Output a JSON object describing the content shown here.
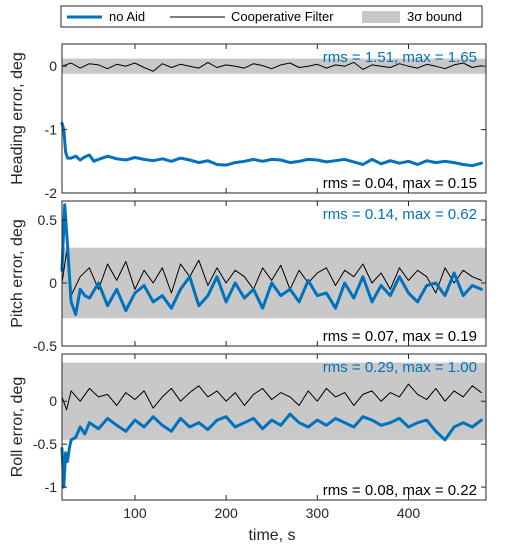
{
  "colors": {
    "no_aid": "#0072BD",
    "coop": "#000000",
    "bound": "#c8c8c8",
    "text": "#262626",
    "axis": "#262626"
  },
  "legend": {
    "entries": [
      {
        "label": "no Aid",
        "style": "thick-line",
        "color": "#0072BD"
      },
      {
        "label": "Cooperative Filter",
        "style": "thin-line",
        "color": "#000000"
      },
      {
        "label": "3σ bound",
        "style": "patch",
        "color": "#c8c8c8"
      }
    ]
  },
  "xlabel": "time, s",
  "chart_data": [
    {
      "type": "line",
      "ylabel": "Heading error, deg",
      "xlim": [
        20,
        485
      ],
      "ylim": [
        -2,
        0.35
      ],
      "xticks": [
        100,
        200,
        300,
        400
      ],
      "xticklabels": [
        "100",
        "200",
        "300",
        "400"
      ],
      "yticks": [
        -2,
        -1,
        0
      ],
      "yticklabels": [
        "-2",
        "-1",
        "0"
      ],
      "bound": 0.12,
      "annotations": [
        {
          "text": "rms = 1.51, max = 1.65",
          "series": "no Aid",
          "position": "top-right"
        },
        {
          "text": "rms = 0.04, max = 0.15",
          "series": "Cooperative Filter",
          "position": "bottom-right"
        }
      ],
      "series": [
        {
          "name": "no Aid",
          "x": [
            20,
            22,
            24,
            26,
            30,
            35,
            40,
            45,
            50,
            55,
            60,
            70,
            80,
            90,
            100,
            110,
            120,
            130,
            140,
            150,
            160,
            170,
            180,
            190,
            200,
            210,
            220,
            230,
            240,
            250,
            260,
            270,
            280,
            290,
            300,
            310,
            320,
            330,
            340,
            350,
            360,
            370,
            380,
            390,
            400,
            410,
            420,
            430,
            440,
            450,
            460,
            470,
            480
          ],
          "y": [
            -0.9,
            -1.0,
            -1.35,
            -1.45,
            -1.45,
            -1.42,
            -1.48,
            -1.43,
            -1.4,
            -1.5,
            -1.47,
            -1.42,
            -1.46,
            -1.48,
            -1.44,
            -1.47,
            -1.49,
            -1.46,
            -1.5,
            -1.45,
            -1.48,
            -1.52,
            -1.49,
            -1.55,
            -1.56,
            -1.52,
            -1.5,
            -1.47,
            -1.5,
            -1.47,
            -1.48,
            -1.52,
            -1.5,
            -1.47,
            -1.48,
            -1.51,
            -1.49,
            -1.47,
            -1.51,
            -1.55,
            -1.47,
            -1.54,
            -1.49,
            -1.53,
            -1.5,
            -1.55,
            -1.49,
            -1.52,
            -1.5,
            -1.52,
            -1.55,
            -1.57,
            -1.53
          ]
        },
        {
          "name": "Cooperative Filter",
          "x": [
            20,
            30,
            40,
            50,
            60,
            70,
            80,
            90,
            100,
            110,
            120,
            130,
            140,
            150,
            160,
            170,
            180,
            190,
            200,
            210,
            220,
            230,
            240,
            250,
            260,
            270,
            280,
            290,
            300,
            310,
            320,
            330,
            340,
            350,
            360,
            370,
            380,
            390,
            400,
            410,
            420,
            430,
            440,
            450,
            460,
            470,
            480
          ],
          "y": [
            0.0,
            0.05,
            -0.03,
            0.04,
            0.02,
            -0.04,
            0.03,
            0.0,
            0.05,
            -0.02,
            -0.08,
            0.04,
            -0.02,
            0.03,
            0.0,
            -0.03,
            0.06,
            -0.02,
            0.02,
            0.0,
            -0.03,
            0.04,
            0.01,
            -0.04,
            0.02,
            0.05,
            -0.02,
            0.0,
            0.03,
            -0.03,
            0.02,
            0.0,
            0.06,
            -0.05,
            0.02,
            0.0,
            -0.02,
            0.04,
            0.0,
            -0.03,
            0.03,
            0.0,
            -0.04,
            0.02,
            0.05,
            -0.02,
            0.01
          ]
        }
      ]
    },
    {
      "type": "line",
      "ylabel": "Pitch error, deg",
      "xlim": [
        20,
        485
      ],
      "ylim": [
        -0.5,
        0.65
      ],
      "xticks": [
        100,
        200,
        300,
        400
      ],
      "xticklabels": [
        "100",
        "200",
        "300",
        "400"
      ],
      "yticks": [
        -0.5,
        0,
        0.5
      ],
      "yticklabels": [
        "-0.5",
        "0",
        "0.5"
      ],
      "bound": 0.28,
      "annotations": [
        {
          "text": "rms = 0.14, max = 0.62",
          "series": "no Aid",
          "position": "top-right"
        },
        {
          "text": "rms = 0.07, max = 0.19",
          "series": "Cooperative Filter",
          "position": "bottom-right"
        }
      ],
      "series": [
        {
          "name": "no Aid",
          "x": [
            20,
            23,
            26,
            30,
            35,
            40,
            45,
            50,
            60,
            70,
            80,
            90,
            100,
            110,
            120,
            130,
            140,
            150,
            160,
            170,
            180,
            190,
            200,
            210,
            220,
            230,
            240,
            250,
            260,
            270,
            280,
            290,
            300,
            310,
            320,
            330,
            340,
            350,
            360,
            370,
            380,
            390,
            400,
            410,
            420,
            430,
            440,
            450,
            460,
            470,
            480
          ],
          "y": [
            0.1,
            0.62,
            0.3,
            -0.15,
            -0.25,
            -0.05,
            -0.1,
            -0.12,
            0.0,
            -0.18,
            -0.05,
            -0.22,
            -0.08,
            -0.02,
            -0.15,
            -0.1,
            -0.2,
            -0.05,
            0.05,
            -0.18,
            -0.1,
            0.05,
            -0.15,
            0.0,
            -0.12,
            -0.05,
            -0.2,
            0.0,
            -0.1,
            -0.05,
            -0.15,
            0.02,
            -0.1,
            -0.08,
            -0.2,
            0.0,
            -0.12,
            0.05,
            -0.15,
            -0.02,
            -0.1,
            0.05,
            -0.08,
            -0.15,
            -0.02,
            0.0,
            -0.1,
            0.08,
            -0.1,
            -0.02,
            -0.05
          ]
        },
        {
          "name": "Cooperative Filter",
          "x": [
            20,
            25,
            30,
            40,
            50,
            60,
            70,
            80,
            90,
            100,
            110,
            120,
            130,
            140,
            150,
            160,
            170,
            180,
            190,
            200,
            210,
            220,
            230,
            240,
            250,
            260,
            270,
            280,
            290,
            300,
            310,
            320,
            330,
            340,
            350,
            360,
            370,
            380,
            390,
            400,
            410,
            420,
            430,
            440,
            450,
            460,
            470,
            480
          ],
          "y": [
            0.0,
            0.25,
            -0.1,
            0.05,
            0.12,
            -0.05,
            0.15,
            0.02,
            0.17,
            -0.05,
            0.1,
            0.0,
            0.12,
            -0.08,
            0.15,
            0.05,
            0.18,
            -0.02,
            0.12,
            0.0,
            0.1,
            0.05,
            -0.05,
            0.12,
            0.02,
            0.14,
            -0.05,
            0.1,
            0.0,
            0.08,
            0.12,
            -0.02,
            0.1,
            0.05,
            0.15,
            0.0,
            0.08,
            -0.05,
            0.12,
            0.02,
            0.1,
            0.05,
            -0.08,
            0.12,
            0.0,
            0.1,
            0.05,
            0.02
          ]
        }
      ]
    },
    {
      "type": "line",
      "ylabel": "Roll error, deg",
      "xlim": [
        20,
        485
      ],
      "ylim": [
        -1.15,
        0.55
      ],
      "xticks": [
        100,
        200,
        300,
        400
      ],
      "xticklabels": [
        "100",
        "200",
        "300",
        "400"
      ],
      "yticks": [
        -1,
        -0.5,
        0
      ],
      "yticklabels": [
        "-1",
        "-0.5",
        "0"
      ],
      "bound": 0.45,
      "annotations": [
        {
          "text": "rms = 0.29, max = 1.00",
          "series": "no Aid",
          "position": "top-right"
        },
        {
          "text": "rms = 0.08, max = 0.22",
          "series": "Cooperative Filter",
          "position": "bottom-right"
        }
      ],
      "series": [
        {
          "name": "no Aid",
          "x": [
            20,
            22,
            24,
            26,
            28,
            30,
            35,
            40,
            45,
            50,
            60,
            70,
            80,
            90,
            100,
            110,
            120,
            130,
            140,
            150,
            160,
            170,
            180,
            190,
            200,
            210,
            220,
            230,
            240,
            250,
            260,
            270,
            280,
            290,
            300,
            310,
            320,
            330,
            340,
            350,
            360,
            370,
            380,
            390,
            400,
            410,
            420,
            430,
            440,
            450,
            460,
            470,
            480
          ],
          "y": [
            -0.55,
            -1.0,
            -0.6,
            -0.7,
            -0.55,
            -0.45,
            -0.42,
            -0.3,
            -0.38,
            -0.25,
            -0.32,
            -0.2,
            -0.28,
            -0.35,
            -0.22,
            -0.3,
            -0.18,
            -0.28,
            -0.35,
            -0.2,
            -0.3,
            -0.25,
            -0.33,
            -0.22,
            -0.18,
            -0.3,
            -0.25,
            -0.2,
            -0.32,
            -0.22,
            -0.28,
            -0.15,
            -0.25,
            -0.3,
            -0.22,
            -0.28,
            -0.2,
            -0.25,
            -0.3,
            -0.18,
            -0.22,
            -0.28,
            -0.25,
            -0.2,
            -0.3,
            -0.25,
            -0.22,
            -0.35,
            -0.45,
            -0.3,
            -0.25,
            -0.3,
            -0.22
          ]
        },
        {
          "name": "Cooperative Filter",
          "x": [
            20,
            25,
            30,
            40,
            50,
            60,
            70,
            80,
            90,
            100,
            110,
            120,
            130,
            140,
            150,
            160,
            170,
            180,
            190,
            200,
            210,
            220,
            230,
            240,
            250,
            260,
            270,
            280,
            290,
            300,
            310,
            320,
            330,
            340,
            350,
            360,
            370,
            380,
            390,
            400,
            410,
            420,
            430,
            440,
            450,
            460,
            470,
            480
          ],
          "y": [
            0.05,
            -0.1,
            0.12,
            0.0,
            0.15,
            0.05,
            0.08,
            -0.05,
            0.1,
            0.02,
            0.12,
            -0.08,
            0.05,
            0.15,
            0.0,
            0.1,
            0.18,
            0.05,
            0.12,
            0.0,
            0.1,
            -0.05,
            0.08,
            0.15,
            0.02,
            0.1,
            0.05,
            -0.05,
            0.12,
            0.0,
            0.15,
            0.05,
            0.1,
            -0.05,
            0.08,
            0.12,
            0.0,
            0.1,
            0.05,
            0.2,
            0.08,
            0.02,
            0.15,
            0.0,
            0.12,
            0.05,
            0.18,
            0.1
          ]
        }
      ]
    }
  ]
}
